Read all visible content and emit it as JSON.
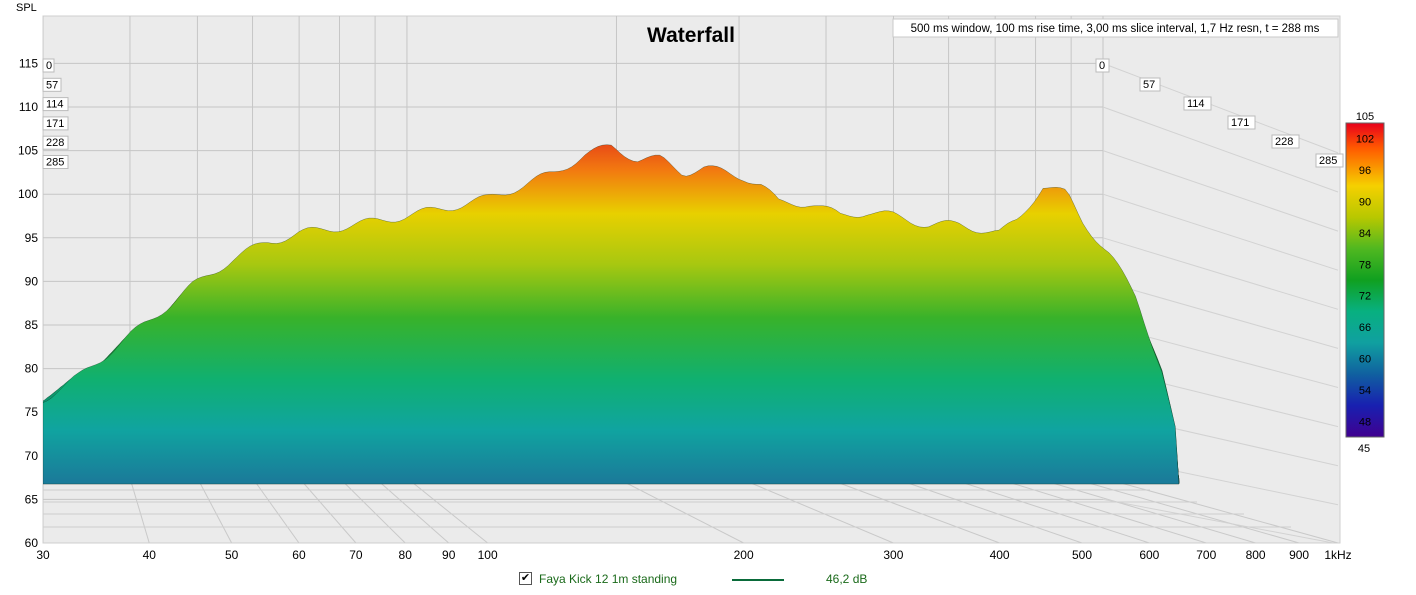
{
  "chart_data": {
    "type": "waterfall",
    "title": "Waterfall",
    "subtitle": "500 ms window, 100 ms rise time, 3,00 ms slice interval, 1,7 Hz resn, t = 288 ms",
    "ylabel": "SPL",
    "xscale": "log",
    "xlim": [
      30,
      1000
    ],
    "ylim": [
      60,
      118
    ],
    "x_ticks": [
      30,
      40,
      50,
      60,
      70,
      80,
      90,
      100,
      200,
      300,
      400,
      500,
      600,
      700,
      800,
      900,
      1000
    ],
    "x_tick_labels": [
      "30",
      "40",
      "50",
      "60",
      "70",
      "80",
      "90",
      "100",
      "200",
      "300",
      "400",
      "500",
      "600",
      "700",
      "800",
      "900",
      "1kHz"
    ],
    "y_ticks": [
      60,
      65,
      70,
      75,
      80,
      85,
      90,
      95,
      100,
      105,
      110,
      115
    ],
    "y_tick_labels": [
      "60",
      "65",
      "70",
      "75",
      "80",
      "85",
      "90",
      "95",
      "100",
      "105",
      "110",
      "115"
    ],
    "time_slices_ms": [
      "0",
      "57",
      "114",
      "171",
      "228",
      "285"
    ],
    "colorbar": {
      "min": 45,
      "max": 105,
      "labels": [
        "105",
        "102",
        "96",
        "90",
        "84",
        "78",
        "72",
        "66",
        "60",
        "54",
        "48",
        "45"
      ],
      "values": [
        105,
        102,
        96,
        90,
        84,
        78,
        72,
        66,
        60,
        54,
        48,
        45
      ]
    },
    "series": [
      {
        "name": "Faya Kick 12 1m standing",
        "level": "46,2 dB",
        "color": "#0a6b3a",
        "front_slice_db": [
          [
            30,
            76.5
          ],
          [
            33,
            79
          ],
          [
            36,
            82
          ],
          [
            40,
            85.5
          ],
          [
            45,
            89.5
          ],
          [
            50,
            92.5
          ],
          [
            55,
            94.5
          ],
          [
            60,
            95.5
          ],
          [
            70,
            96.5
          ],
          [
            80,
            97.5
          ],
          [
            90,
            98.5
          ],
          [
            100,
            99.5
          ],
          [
            110,
            101
          ],
          [
            120,
            102.5
          ],
          [
            130,
            104.5
          ],
          [
            140,
            105.5
          ],
          [
            150,
            104
          ],
          [
            160,
            104
          ],
          [
            170,
            102.5
          ],
          [
            180,
            103
          ],
          [
            190,
            102.5
          ],
          [
            200,
            102
          ],
          [
            210,
            101
          ],
          [
            220,
            99
          ],
          [
            240,
            99
          ],
          [
            260,
            97.5
          ],
          [
            280,
            98
          ],
          [
            300,
            97.5
          ],
          [
            330,
            96.5
          ],
          [
            360,
            96.5
          ],
          [
            400,
            95.5
          ],
          [
            420,
            97
          ],
          [
            450,
            101
          ],
          [
            480,
            100
          ],
          [
            500,
            97
          ],
          [
            540,
            93
          ],
          [
            580,
            88
          ],
          [
            620,
            80
          ],
          [
            650,
            71
          ]
        ]
      }
    ]
  },
  "legend": {
    "checkbox_mark": "✔",
    "name": "Faya Kick 12 1m standing",
    "value": "46,2 dB"
  }
}
